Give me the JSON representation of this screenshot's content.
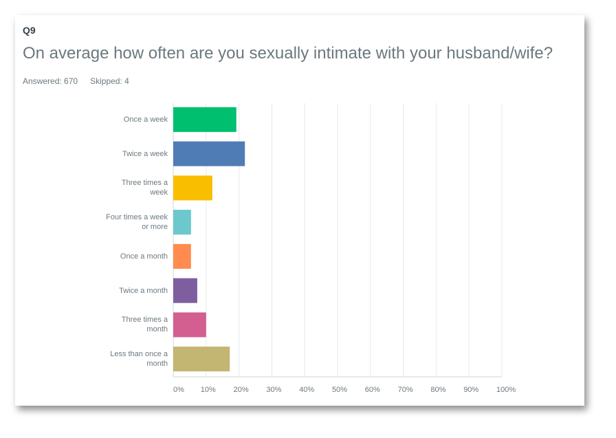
{
  "question": "Q9",
  "chart_data": {
    "type": "bar",
    "orientation": "horizontal",
    "title": "On average how often are you sexually intimate with your husband/wife?",
    "answered": "Answered: 670",
    "skipped": "Skipped: 4",
    "categories": [
      "Once a week",
      "Twice a week",
      "Three times a week",
      "Four times a week or more",
      "Once a month",
      "Twice a month",
      "Three times a month",
      "Less than once a month"
    ],
    "values": [
      19.2,
      21.8,
      11.9,
      5.4,
      5.4,
      7.3,
      10.0,
      17.2
    ],
    "colors": [
      "#00bf6f",
      "#507cb6",
      "#f9be00",
      "#6bc8cd",
      "#ff8b4f",
      "#7f5ea0",
      "#d25f90",
      "#c3b572"
    ],
    "xlim": [
      0,
      100
    ],
    "xticks": [
      {
        "value": 0,
        "label": "0%"
      },
      {
        "value": 10,
        "label": "10%"
      },
      {
        "value": 20,
        "label": "20%"
      },
      {
        "value": 30,
        "label": "30%"
      },
      {
        "value": 40,
        "label": "40%"
      },
      {
        "value": 50,
        "label": "50%"
      },
      {
        "value": 60,
        "label": "60%"
      },
      {
        "value": 70,
        "label": "70%"
      },
      {
        "value": 80,
        "label": "80%"
      },
      {
        "value": 90,
        "label": "90%"
      },
      {
        "value": 100,
        "label": "100%"
      }
    ],
    "grid": true
  }
}
